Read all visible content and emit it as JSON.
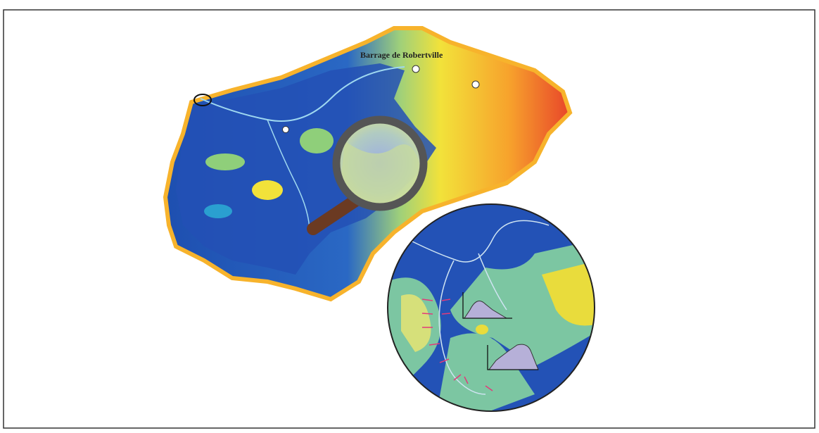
{
  "map": {
    "label": "Barrage de Robertville"
  }
}
